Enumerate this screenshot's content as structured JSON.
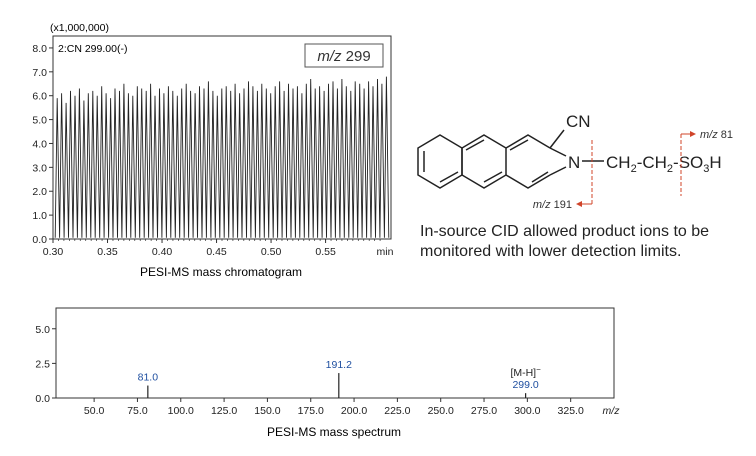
{
  "chart_data": [
    {
      "type": "line",
      "scale_label": "(x1,000,000)",
      "channel_label": "2:CN 299.00(-)",
      "mz_box": {
        "prefix": "m/z",
        "value": "299"
      },
      "xlabel": "PESI-MS mass chromatogram",
      "x_unit": "min",
      "xlim": [
        0.3,
        0.61
      ],
      "ylim": [
        0,
        8.5
      ],
      "x_ticks": [
        "0.30",
        "0.35",
        "0.40",
        "0.45",
        "0.50",
        "0.55"
      ],
      "y_ticks": [
        "0.0",
        "1.0",
        "2.0",
        "3.0",
        "4.0",
        "5.0",
        "6.0",
        "7.0",
        "8.0"
      ],
      "series": [
        {
          "peak_count": 75,
          "baseline": 0.05,
          "peak_max": [
            5.9,
            6.1,
            5.7,
            6.2,
            6.0,
            6.3,
            5.8,
            6.1,
            6.2,
            6.0,
            6.4,
            6.1,
            5.9,
            6.3,
            6.2,
            6.5,
            6.1,
            6.0,
            6.4,
            6.3,
            6.2,
            6.5,
            6.0,
            6.3,
            6.1,
            6.4,
            6.2,
            6.0,
            6.3,
            6.5,
            6.2,
            6.1,
            6.4,
            6.3,
            6.6,
            6.2,
            6.0,
            6.3,
            6.4,
            6.2,
            6.5,
            6.1,
            6.3,
            6.6,
            6.4,
            6.2,
            6.5,
            6.3,
            6.1,
            6.4,
            6.6,
            6.2,
            6.5,
            6.3,
            6.4,
            6.1,
            6.5,
            6.7,
            6.3,
            6.4,
            6.2,
            6.5,
            6.6,
            6.3,
            6.7,
            6.4,
            6.2,
            6.6,
            6.5,
            6.3,
            6.6,
            6.4,
            6.7,
            6.5,
            6.8
          ]
        }
      ]
    },
    {
      "type": "bar",
      "xlabel": "PESI-MS mass spectrum",
      "x_unit": "m/z",
      "xlim": [
        28,
        350
      ],
      "ylim": [
        0,
        6.5
      ],
      "x_ticks": [
        "50.0",
        "75.0",
        "100.0",
        "125.0",
        "150.0",
        "175.0",
        "200.0",
        "225.0",
        "250.0",
        "275.0",
        "300.0",
        "325.0"
      ],
      "y_ticks": [
        "0.0",
        "2.5",
        "5.0"
      ],
      "peaks": [
        {
          "x": 81.0,
          "y": 0.9,
          "label": "81.0"
        },
        {
          "x": 191.2,
          "y": 1.8,
          "label": "191.2"
        },
        {
          "x": 299.0,
          "y": 0.35,
          "label": "299.0",
          "annotation": "[M-H]",
          "annotation_sup": "−"
        }
      ]
    }
  ],
  "structure": {
    "cn": "CN",
    "n": "N",
    "chain": {
      "ch": "CH",
      "two": "2",
      "dash": "-",
      "so": "SO",
      "three": "3",
      "h": "H"
    },
    "frag191": {
      "prefix": "m/z",
      "value": "191"
    },
    "frag81": {
      "prefix": "m/z",
      "value": "81"
    },
    "color_fragment": "#d0442a"
  },
  "note": "In-source CID allowed product ions to be monitored with lower detection limits.",
  "colors": {
    "peak_label": "#1f4fa0",
    "axis": "#333333"
  }
}
